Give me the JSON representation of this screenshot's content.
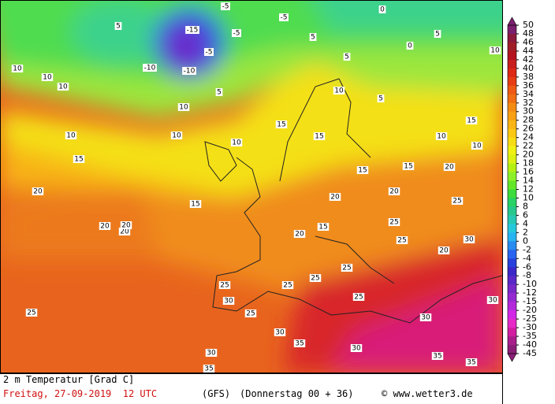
{
  "footer": {
    "title": "2 m Temperatur [Grad C]",
    "date": "Freitag, 27-09-2019  12 UTC",
    "model": "(GFS)",
    "run": "(Donnerstag 00 + 36)",
    "source": "© www.wetter3.de"
  },
  "colorbar": {
    "labels": [
      50,
      48,
      46,
      44,
      42,
      40,
      38,
      36,
      34,
      32,
      30,
      28,
      26,
      24,
      22,
      20,
      18,
      16,
      14,
      12,
      10,
      8,
      6,
      4,
      2,
      0,
      -2,
      -4,
      -6,
      -8,
      -10,
      -12,
      -15,
      -20,
      -25,
      -30,
      -35,
      -40,
      -45
    ],
    "colors": [
      "#7a1e6e",
      "#8c1a3c",
      "#a01e28",
      "#b4141e",
      "#c81e1e",
      "#dc2814",
      "#e63c14",
      "#ee5a14",
      "#f06e14",
      "#f48c14",
      "#f8a014",
      "#fab414",
      "#fcc814",
      "#f8dc14",
      "#f0f014",
      "#dcf014",
      "#b4f014",
      "#8cf028",
      "#64e628",
      "#3cdc3c",
      "#28d264",
      "#28c88c",
      "#28c8b4",
      "#28c8dc",
      "#28b4f0",
      "#288cf0",
      "#2864f0",
      "#2840dc",
      "#3c28c8",
      "#5a28c8",
      "#7828c8",
      "#9628d2",
      "#b428dc",
      "#d228e6",
      "#e628c8",
      "#d21ea0",
      "#aa1e8c",
      "#8c1e78"
    ]
  },
  "map_labels": [
    -5,
    -15,
    -5,
    -10,
    -10,
    -5,
    5,
    10,
    10,
    10,
    10,
    5,
    10,
    10,
    10,
    15,
    20,
    15,
    20,
    20,
    25,
    30,
    25,
    30,
    35,
    30,
    25,
    25,
    25,
    20,
    15,
    20,
    25,
    20,
    15,
    15,
    10,
    15,
    20,
    25,
    30,
    30,
    35,
    5,
    0,
    0,
    5,
    10,
    5,
    15,
    15,
    10,
    5,
    -5,
    30,
    35,
    25,
    30,
    35,
    25,
    20,
    25,
    10,
    20
  ]
}
